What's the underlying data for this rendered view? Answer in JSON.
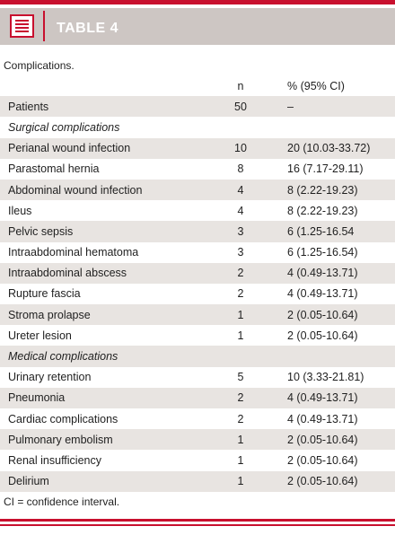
{
  "header": {
    "title": "TABLE 4",
    "icon": "table-document-icon"
  },
  "caption": "Complications.",
  "columns": {
    "label": "",
    "n": "n",
    "pct": "% (95% CI)"
  },
  "rows": [
    {
      "label": "Patients",
      "n": "50",
      "pct": "–",
      "section": false
    },
    {
      "label": "Surgical complications",
      "n": "",
      "pct": "",
      "section": true
    },
    {
      "label": "Perianal wound infection",
      "n": "10",
      "pct": "20 (10.03-33.72)",
      "section": false
    },
    {
      "label": "Parastomal hernia",
      "n": "8",
      "pct": "16 (7.17-29.11)",
      "section": false
    },
    {
      "label": "Abdominal wound infection",
      "n": "4",
      "pct": "8 (2.22-19.23)",
      "section": false
    },
    {
      "label": "Ileus",
      "n": "4",
      "pct": "8 (2.22-19.23)",
      "section": false
    },
    {
      "label": "Pelvic sepsis",
      "n": "3",
      "pct": "6 (1.25-16.54",
      "section": false
    },
    {
      "label": "Intraabdominal hematoma",
      "n": "3",
      "pct": "6 (1.25-16.54)",
      "section": false
    },
    {
      "label": "Intraabdominal abscess",
      "n": "2",
      "pct": "4 (0.49-13.71)",
      "section": false
    },
    {
      "label": "Rupture fascia",
      "n": "2",
      "pct": "4 (0.49-13.71)",
      "section": false
    },
    {
      "label": "Stroma prolapse",
      "n": "1",
      "pct": "2 (0.05-10.64)",
      "section": false
    },
    {
      "label": "Ureter lesion",
      "n": "1",
      "pct": "2 (0.05-10.64)",
      "section": false
    },
    {
      "label": "Medical complications",
      "n": "",
      "pct": "",
      "section": true
    },
    {
      "label": "Urinary retention",
      "n": "5",
      "pct": "10 (3.33-21.81)",
      "section": false
    },
    {
      "label": "Pneumonia",
      "n": "2",
      "pct": "4 (0.49-13.71)",
      "section": false
    },
    {
      "label": "Cardiac complications",
      "n": "2",
      "pct": "4 (0.49-13.71)",
      "section": false
    },
    {
      "label": "Pulmonary embolism",
      "n": "1",
      "pct": "2 (0.05-10.64)",
      "section": false
    },
    {
      "label": "Renal insufficiency",
      "n": "1",
      "pct": "2 (0.05-10.64)",
      "section": false
    },
    {
      "label": "Delirium",
      "n": "1",
      "pct": "2 (0.05-10.64)",
      "section": false
    }
  ],
  "footnote": "CI = confidence interval.",
  "colors": {
    "accent": "#c8102e",
    "header_band": "#cdc6c3",
    "row_shade": "#e8e4e1"
  }
}
